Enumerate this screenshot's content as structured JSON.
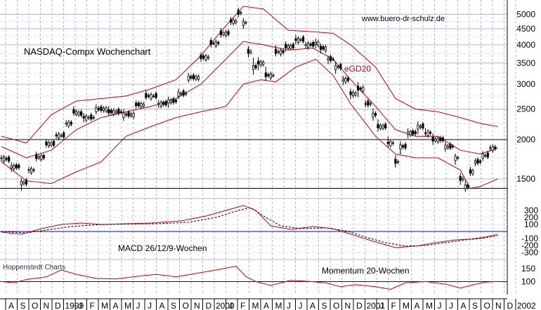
{
  "chart_data": [
    {
      "type": "candlestick",
      "title": "NASDAQ-Compx Wochenchart",
      "watermark": "www.buero-dr-schulz.de",
      "y_scale": "log",
      "ylim": [
        1300,
        5300
      ],
      "yticks": [
        5000,
        4500,
        4000,
        3500,
        3000,
        2500,
        2000,
        1500
      ],
      "grid": true,
      "annotations": [
        {
          "text": "eGD20",
          "color": "#cc0000"
        }
      ],
      "horizontal_lines": [
        2000,
        1400
      ],
      "ohlc_weeks_from_start": [
        [
          0,
          1800,
          1820,
          1700,
          1750
        ],
        [
          4,
          1720,
          1760,
          1600,
          1640
        ],
        [
          8,
          1640,
          1660,
          1380,
          1460
        ],
        [
          11,
          1460,
          1620,
          1440,
          1600
        ],
        [
          14,
          1600,
          1780,
          1580,
          1760
        ],
        [
          18,
          1760,
          1960,
          1740,
          1940
        ],
        [
          22,
          1940,
          2080,
          1920,
          2060
        ],
        [
          26,
          2060,
          2280,
          2040,
          2250
        ],
        [
          29,
          2250,
          2500,
          2230,
          2450
        ],
        [
          33,
          2400,
          2450,
          2280,
          2350
        ],
        [
          38,
          2350,
          2550,
          2330,
          2500
        ],
        [
          43,
          2500,
          2560,
          2420,
          2450
        ],
        [
          49,
          2450,
          2520,
          2350,
          2400
        ],
        [
          54,
          2400,
          2600,
          2380,
          2580
        ],
        [
          58,
          2580,
          2800,
          2560,
          2750
        ],
        [
          63,
          2750,
          2800,
          2550,
          2600
        ],
        [
          67,
          2600,
          2700,
          2500,
          2650
        ],
        [
          71,
          2650,
          2850,
          2620,
          2800
        ],
        [
          75,
          2800,
          3200,
          2780,
          3150
        ],
        [
          80,
          3150,
          3700,
          3100,
          3650
        ],
        [
          84,
          3650,
          4100,
          3600,
          4050
        ],
        [
          88,
          4050,
          4400,
          4000,
          4350
        ],
        [
          92,
          4350,
          4800,
          4300,
          4750
        ],
        [
          95,
          4750,
          5100,
          4700,
          5050
        ],
        [
          97,
          5050,
          5130,
          4600,
          4700
        ],
        [
          99,
          4700,
          4750,
          3700,
          3800
        ],
        [
          101,
          3800,
          4100,
          3250,
          3400
        ],
        [
          103,
          3400,
          3600,
          3200,
          3500
        ],
        [
          106,
          3500,
          3700,
          3100,
          3200
        ],
        [
          110,
          3200,
          3900,
          3150,
          3800
        ],
        [
          114,
          3800,
          4000,
          3700,
          3950
        ],
        [
          118,
          3950,
          4250,
          3850,
          4150
        ],
        [
          122,
          4150,
          4200,
          3900,
          4000
        ],
        [
          126,
          4000,
          4150,
          3900,
          4050
        ],
        [
          128,
          4050,
          4100,
          3800,
          3900
        ],
        [
          131,
          3900,
          3950,
          3500,
          3600
        ],
        [
          134,
          3600,
          3700,
          3300,
          3400
        ],
        [
          137,
          3400,
          3450,
          3000,
          3100
        ],
        [
          140,
          3100,
          3150,
          2700,
          2800
        ],
        [
          143,
          2800,
          3000,
          2600,
          2900
        ],
        [
          146,
          2900,
          2950,
          2550,
          2600
        ],
        [
          149,
          2600,
          2700,
          2350,
          2400
        ],
        [
          151,
          2400,
          2500,
          2150,
          2200
        ],
        [
          155,
          2200,
          2300,
          1900,
          1950
        ],
        [
          158,
          1950,
          2000,
          1650,
          1700
        ],
        [
          160,
          1700,
          1950,
          1620,
          1900
        ],
        [
          163,
          1900,
          2150,
          1850,
          2100
        ],
        [
          167,
          2100,
          2250,
          2000,
          2200
        ],
        [
          170,
          2200,
          2280,
          2050,
          2100
        ],
        [
          173,
          2100,
          2150,
          1950,
          2000
        ],
        [
          178,
          2000,
          2050,
          1880,
          1900
        ],
        [
          182,
          1900,
          1920,
          1700,
          1750
        ],
        [
          184,
          1750,
          1780,
          1450,
          1500
        ],
        [
          186,
          1500,
          1560,
          1400,
          1420
        ],
        [
          188,
          1420,
          1600,
          1400,
          1580
        ],
        [
          190,
          1580,
          1720,
          1560,
          1700
        ],
        [
          193,
          1700,
          1800,
          1680,
          1780
        ],
        [
          196,
          1780,
          1900,
          1760,
          1880
        ],
        [
          199,
          1880,
          1960,
          1860,
          1940
        ]
      ],
      "moving_average_eGD20": [
        [
          0,
          1900
        ],
        [
          10,
          1750
        ],
        [
          20,
          1850
        ],
        [
          30,
          2150
        ],
        [
          40,
          2350
        ],
        [
          50,
          2450
        ],
        [
          60,
          2550
        ],
        [
          70,
          2700
        ],
        [
          80,
          3000
        ],
        [
          90,
          3600
        ],
        [
          97,
          4100
        ],
        [
          105,
          4000
        ],
        [
          115,
          3850
        ],
        [
          125,
          3900
        ],
        [
          133,
          3600
        ],
        [
          140,
          3100
        ],
        [
          150,
          2550
        ],
        [
          158,
          2150
        ],
        [
          166,
          2050
        ],
        [
          175,
          2050
        ],
        [
          184,
          1850
        ],
        [
          192,
          1800
        ],
        [
          199,
          1880
        ]
      ],
      "upper_band": [
        [
          0,
          2050
        ],
        [
          10,
          1950
        ],
        [
          20,
          2400
        ],
        [
          30,
          2650
        ],
        [
          40,
          2700
        ],
        [
          50,
          2750
        ],
        [
          60,
          2900
        ],
        [
          70,
          3100
        ],
        [
          80,
          3700
        ],
        [
          90,
          4600
        ],
        [
          97,
          5300
        ],
        [
          105,
          5200
        ],
        [
          115,
          4450
        ],
        [
          125,
          4400
        ],
        [
          133,
          4350
        ],
        [
          140,
          4000
        ],
        [
          150,
          3400
        ],
        [
          158,
          2700
        ],
        [
          166,
          2500
        ],
        [
          175,
          2450
        ],
        [
          184,
          2350
        ],
        [
          192,
          2250
        ],
        [
          199,
          2200
        ]
      ],
      "lower_band": [
        [
          0,
          1700
        ],
        [
          10,
          1480
        ],
        [
          20,
          1450
        ],
        [
          30,
          1580
        ],
        [
          40,
          1700
        ],
        [
          50,
          2050
        ],
        [
          60,
          2200
        ],
        [
          70,
          2350
        ],
        [
          80,
          2450
        ],
        [
          90,
          2550
        ],
        [
          97,
          3000
        ],
        [
          104,
          3100
        ],
        [
          110,
          3050
        ],
        [
          118,
          3400
        ],
        [
          126,
          3600
        ],
        [
          133,
          3200
        ],
        [
          140,
          2600
        ],
        [
          150,
          2050
        ],
        [
          158,
          1800
        ],
        [
          166,
          1750
        ],
        [
          175,
          1750
        ],
        [
          184,
          1600
        ],
        [
          188,
          1400
        ],
        [
          192,
          1420
        ],
        [
          199,
          1500
        ]
      ],
      "x_axis": {
        "labels": [
          "A",
          "S",
          "O",
          "N",
          "D",
          "1999",
          "J",
          "F",
          "M",
          "A",
          "M",
          "J",
          "J",
          "A",
          "S",
          "O",
          "N",
          "D",
          "2000",
          "J",
          "F",
          "M",
          "A",
          "M",
          "J",
          "J",
          "A",
          "S",
          "O",
          "N",
          "D",
          "2001",
          "J",
          "F",
          "M",
          "A",
          "M",
          "J",
          "J",
          "A",
          "S",
          "O",
          "N",
          "D",
          "2002"
        ]
      }
    },
    {
      "type": "line",
      "title": "MACD 26/12/9-Wochen",
      "yticks_labels": [
        "300",
        "200",
        "100",
        "-100",
        "-200",
        "-300"
      ],
      "zero_line": 0,
      "series": [
        {
          "color": "#cc0000",
          "values": [
            [
              0,
              -10
            ],
            [
              8,
              -40
            ],
            [
              16,
              40
            ],
            [
              24,
              100
            ],
            [
              32,
              120
            ],
            [
              40,
              100
            ],
            [
              50,
              110
            ],
            [
              60,
              120
            ],
            [
              72,
              150
            ],
            [
              82,
              220
            ],
            [
              92,
              320
            ],
            [
              97,
              370
            ],
            [
              102,
              300
            ],
            [
              108,
              80
            ],
            [
              116,
              30
            ],
            [
              125,
              70
            ],
            [
              133,
              40
            ],
            [
              142,
              -60
            ],
            [
              150,
              -150
            ],
            [
              158,
              -230
            ],
            [
              166,
              -210
            ],
            [
              174,
              -160
            ],
            [
              182,
              -120
            ],
            [
              188,
              -110
            ],
            [
              194,
              -80
            ],
            [
              199,
              -40
            ]
          ]
        },
        {
          "color": "#000000",
          "values": [
            [
              0,
              0
            ],
            [
              10,
              -20
            ],
            [
              18,
              20
            ],
            [
              28,
              70
            ],
            [
              38,
              95
            ],
            [
              50,
              105
            ],
            [
              62,
              110
            ],
            [
              75,
              130
            ],
            [
              86,
              200
            ],
            [
              95,
              300
            ],
            [
              100,
              340
            ],
            [
              106,
              200
            ],
            [
              112,
              80
            ],
            [
              120,
              40
            ],
            [
              130,
              50
            ],
            [
              138,
              10
            ],
            [
              146,
              -80
            ],
            [
              154,
              -160
            ],
            [
              162,
              -210
            ],
            [
              170,
              -200
            ],
            [
              178,
              -160
            ],
            [
              186,
              -120
            ],
            [
              192,
              -100
            ],
            [
              199,
              -60
            ]
          ]
        }
      ]
    },
    {
      "type": "line",
      "title": "Momentum 20-Wochen",
      "yticks_labels": [
        "150",
        "100"
      ],
      "reference_line": 100,
      "series": [
        {
          "color": "#cc0000",
          "values": [
            [
              0,
              100
            ],
            [
              5,
              95
            ],
            [
              10,
              108
            ],
            [
              18,
              118
            ],
            [
              24,
              145
            ],
            [
              30,
              128
            ],
            [
              38,
              112
            ],
            [
              46,
              110
            ],
            [
              54,
              120
            ],
            [
              62,
              128
            ],
            [
              70,
              118
            ],
            [
              80,
              135
            ],
            [
              88,
              148
            ],
            [
              94,
              160
            ],
            [
              98,
              120
            ],
            [
              102,
              100
            ],
            [
              108,
              85
            ],
            [
              116,
              105
            ],
            [
              124,
              100
            ],
            [
              130,
              95
            ],
            [
              136,
              80
            ],
            [
              142,
              88
            ],
            [
              150,
              80
            ],
            [
              156,
              70
            ],
            [
              162,
              95
            ],
            [
              170,
              100
            ],
            [
              178,
              90
            ],
            [
              184,
              75
            ],
            [
              188,
              85
            ],
            [
              194,
              98
            ],
            [
              199,
              100
            ]
          ]
        }
      ]
    }
  ],
  "footer_label": "Hoppenstedt Charts"
}
